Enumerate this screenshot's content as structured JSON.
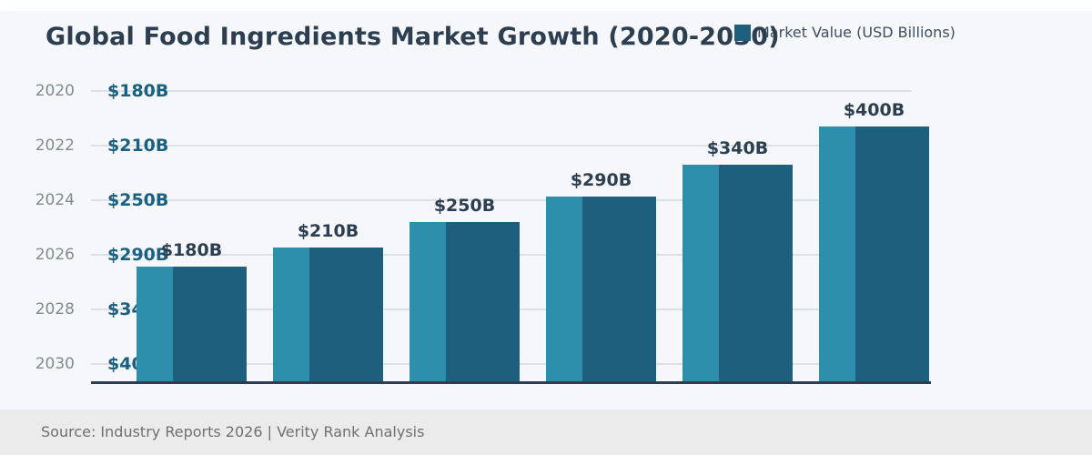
{
  "title": "Global Food Ingredients Market Growth (2020-2030)",
  "legend": {
    "label": "Market Value (USD Billions)",
    "swatch_color": "#1f5f7e"
  },
  "footer": {
    "source": "Source: Industry Reports 2026 | Verity Rank Analysis"
  },
  "chart_data": {
    "type": "bar",
    "title": "Global Food Ingredients Market Growth (2020-2030)",
    "categories": [
      "2020",
      "2022",
      "2024",
      "2026",
      "2028",
      "2030"
    ],
    "values": [
      180,
      210,
      250,
      290,
      340,
      400
    ],
    "unit": "USD Billions",
    "series": [
      {
        "name": "Market Value (USD Billions)",
        "values": [
          180,
          210,
          250,
          290,
          340,
          400
        ]
      }
    ],
    "bar_labels": [
      "$180B",
      "$210B",
      "$250B",
      "$290B",
      "$340B",
      "$400B"
    ],
    "axis_value_labels": [
      "$180B",
      "$210B",
      "$250B",
      "$290B",
      "$340B",
      "$400B"
    ],
    "xlabel": "",
    "ylabel": "",
    "legend_position": "top-right",
    "grid": true,
    "colors": {
      "bar_light": "#2e8fad",
      "bar_dark": "#1f5f7e",
      "axis_line": "#2c3e50",
      "gridline": "#dce1e7",
      "year_label": "#7f8c8d",
      "value_label": "#1a6080",
      "bar_label": "#2c3e50",
      "background": "#f5f7fa",
      "footer_bg": "#ebebeb",
      "footer_text": "#707070"
    }
  }
}
